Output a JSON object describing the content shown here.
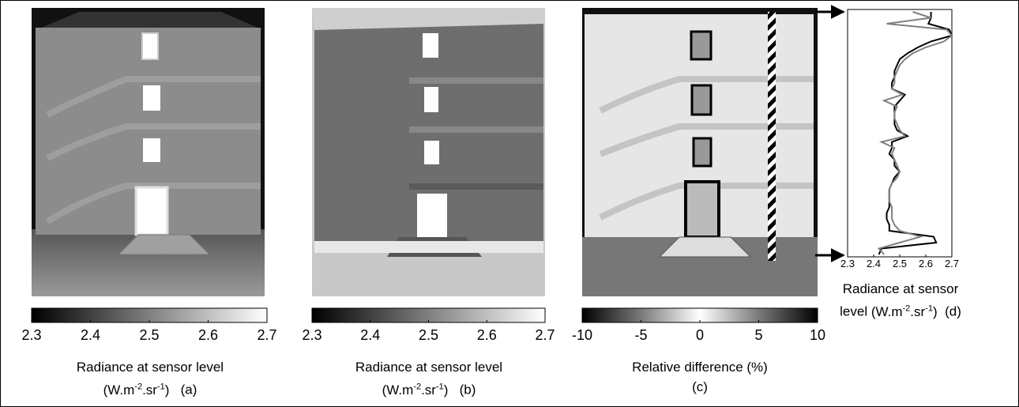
{
  "chart_data": [
    {
      "type": "colorbar",
      "panel": "(a)",
      "xlabel": "Radiance at sensor level",
      "unit": [
        "(W.m",
        "-2",
        ".sr",
        "-1",
        ")"
      ],
      "xlim": [
        2.3,
        2.7
      ],
      "xticks": [
        2.3,
        2.4,
        2.5,
        2.6,
        2.7
      ],
      "colors": [
        "#000000",
        "#ffffff"
      ]
    },
    {
      "type": "colorbar",
      "panel": "(b)",
      "xlabel": "Radiance at sensor level",
      "unit": [
        "(W.m",
        "-2",
        ".sr",
        "-1",
        ")"
      ],
      "xlim": [
        2.3,
        2.7
      ],
      "xticks": [
        2.3,
        2.4,
        2.5,
        2.6,
        2.7
      ],
      "colors": [
        "#000000",
        "#ffffff"
      ]
    },
    {
      "type": "colorbar",
      "panel": "(c)",
      "xlabel": "Relative difference (%)",
      "xlim": [
        -10,
        10
      ],
      "xticks": [
        -10,
        -5,
        0,
        5,
        10
      ],
      "colors": [
        "#000000",
        "#7a7a7a",
        "#ffffff",
        "#7a7a7a",
        "#000000"
      ]
    },
    {
      "type": "line",
      "panel": "(d)",
      "xlabel": "Radiance at sensor level",
      "unit": [
        "(W.m",
        "-2",
        ".sr",
        "-1",
        ")"
      ],
      "xlim": [
        2.3,
        2.7
      ],
      "xticks": [
        2.3,
        2.4,
        2.5,
        2.6,
        2.7
      ],
      "series": [
        {
          "color": "#000000",
          "values": [
            2.62,
            2.62,
            2.61,
            2.69,
            2.7,
            2.62,
            2.57,
            2.53,
            2.5,
            2.49,
            2.48,
            2.48,
            2.47,
            2.47,
            2.52,
            2.5,
            2.48,
            2.48,
            2.48,
            2.48,
            2.49,
            2.53,
            2.47,
            2.47,
            2.46,
            2.48,
            2.48,
            2.5,
            2.48,
            2.47,
            2.46,
            2.46,
            2.46,
            2.46,
            2.45,
            2.45,
            2.46,
            2.46,
            2.63,
            2.64,
            2.43,
            2.42
          ]
        },
        {
          "color": "#808080",
          "values": [
            2.55,
            2.62,
            2.45,
            2.68,
            2.7,
            2.67,
            2.6,
            2.55,
            2.52,
            2.5,
            2.49,
            2.48,
            2.48,
            2.47,
            2.51,
            2.44,
            2.49,
            2.48,
            2.48,
            2.49,
            2.5,
            2.52,
            2.43,
            2.48,
            2.47,
            2.48,
            2.49,
            2.5,
            2.49,
            2.47,
            2.46,
            2.46,
            2.46,
            2.47,
            2.47,
            2.47,
            2.48,
            2.5,
            2.58,
            2.5,
            2.42,
            2.44
          ]
        }
      ]
    }
  ]
}
